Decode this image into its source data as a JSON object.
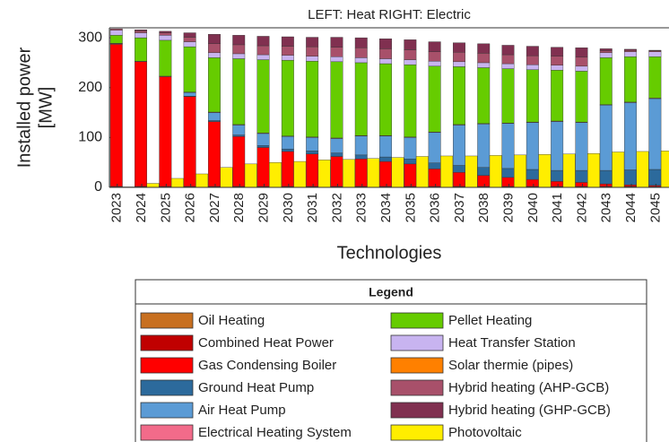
{
  "chart_data": {
    "type": "stacked_bar",
    "title": "LEFT: Heat RIGHT: Electric",
    "xlabel": "Technologies",
    "ylabel": [
      "Installed power",
      "[MW]"
    ],
    "legend_title": "Legend",
    "categories": [
      "2023",
      "2024",
      "2025",
      "2026",
      "2027",
      "2028",
      "2029",
      "2030",
      "2031",
      "2032",
      "2033",
      "2034",
      "2035",
      "2036",
      "2037",
      "2038",
      "2039",
      "2040",
      "2041",
      "2042",
      "2043",
      "2044",
      "2045"
    ],
    "ylim": [
      0,
      320
    ],
    "yticks": [
      0,
      100,
      200,
      300
    ],
    "series": [
      {
        "name": "Oil Heating",
        "color": "#c87020",
        "stack": "left",
        "values": [
          1,
          1,
          1,
          1,
          1,
          1,
          1,
          1,
          1,
          1,
          1,
          1,
          1,
          1,
          1,
          1,
          1,
          1,
          1,
          1,
          1,
          1,
          1
        ]
      },
      {
        "name": "Combined Heat Power",
        "color": "#c00000",
        "stack": "left",
        "values": [
          1,
          1,
          1,
          1,
          1,
          1,
          1,
          1,
          1,
          1,
          1,
          1,
          1,
          1,
          1,
          1,
          1,
          1,
          1,
          1,
          1,
          1,
          1
        ]
      },
      {
        "name": "Gas Condensing Boiler",
        "color": "#ff0000",
        "stack": "left",
        "values": [
          285,
          250,
          220,
          180,
          130,
          100,
          78,
          70,
          65,
          60,
          55,
          50,
          45,
          35,
          28,
          22,
          18,
          14,
          10,
          8,
          5,
          3,
          2
        ]
      },
      {
        "name": "Ground Heat Pump",
        "color": "#2c6a9c",
        "stack": "left",
        "values": [
          0,
          0,
          0,
          1,
          2,
          3,
          4,
          5,
          6,
          7,
          8,
          9,
          10,
          12,
          14,
          16,
          18,
          20,
          22,
          24,
          27,
          30,
          32
        ]
      },
      {
        "name": "Air Heat Pump",
        "color": "#5b9bd5",
        "stack": "left",
        "values": [
          1,
          0,
          0,
          7,
          16,
          20,
          24,
          25,
          27,
          29,
          38,
          42,
          43,
          61,
          81,
          87,
          90,
          94,
          98,
          96,
          131,
          135,
          142
        ]
      },
      {
        "name": "Electrical Heating System",
        "color": "#f26b8a",
        "stack": "left",
        "values": [
          1,
          1,
          1,
          1,
          1,
          1,
          1,
          1,
          1,
          1,
          1,
          1,
          1,
          1,
          1,
          1,
          1,
          1,
          1,
          1,
          1,
          1,
          1
        ]
      },
      {
        "name": "Pellet Heating",
        "color": "#66cc00",
        "stack": "left",
        "values": [
          16,
          47,
          72,
          91,
          109,
          132,
          147,
          152,
          152,
          153,
          146,
          144,
          145,
          132,
          116,
          112,
          109,
          105,
          102,
          102,
          94,
          91,
          83
        ]
      },
      {
        "name": "Heat Transfer Station",
        "color": "#c8b4f0",
        "stack": "left",
        "values": [
          10,
          10,
          10,
          10,
          10,
          10,
          10,
          10,
          10,
          10,
          10,
          10,
          10,
          10,
          10,
          10,
          10,
          10,
          10,
          10,
          10,
          10,
          10
        ]
      },
      {
        "name": "Solar thermie (pipes)",
        "color": "#ff8000",
        "stack": "left",
        "values": [
          0,
          0,
          0,
          0,
          0,
          0,
          0,
          0,
          0,
          0,
          0,
          0,
          0,
          0,
          0,
          0,
          0,
          0,
          0,
          0,
          0,
          0,
          0
        ]
      },
      {
        "name": "Hybrid heating (AHP-GCB)",
        "color": "#a8506a",
        "stack": "left",
        "values": [
          3,
          4,
          5,
          9,
          18,
          18,
          18,
          18,
          19,
          19,
          20,
          20,
          20,
          19,
          19,
          19,
          18,
          18,
          18,
          18,
          4,
          3,
          2
        ]
      },
      {
        "name": "Hybrid heating (GHP-GCB)",
        "color": "#803050",
        "stack": "left",
        "values": [
          0,
          2,
          3,
          9,
          19,
          19,
          19,
          19,
          19,
          20,
          20,
          20,
          20,
          20,
          19,
          19,
          19,
          19,
          18,
          19,
          4,
          2,
          1
        ]
      },
      {
        "name": "Photovoltaic",
        "color": "#ffee00",
        "stack": "right",
        "values": [
          1,
          8,
          18,
          27,
          40,
          47,
          50,
          52,
          55,
          56,
          58,
          60,
          62,
          63,
          63,
          64,
          65,
          66,
          67,
          68,
          71,
          72,
          73
        ]
      }
    ]
  }
}
